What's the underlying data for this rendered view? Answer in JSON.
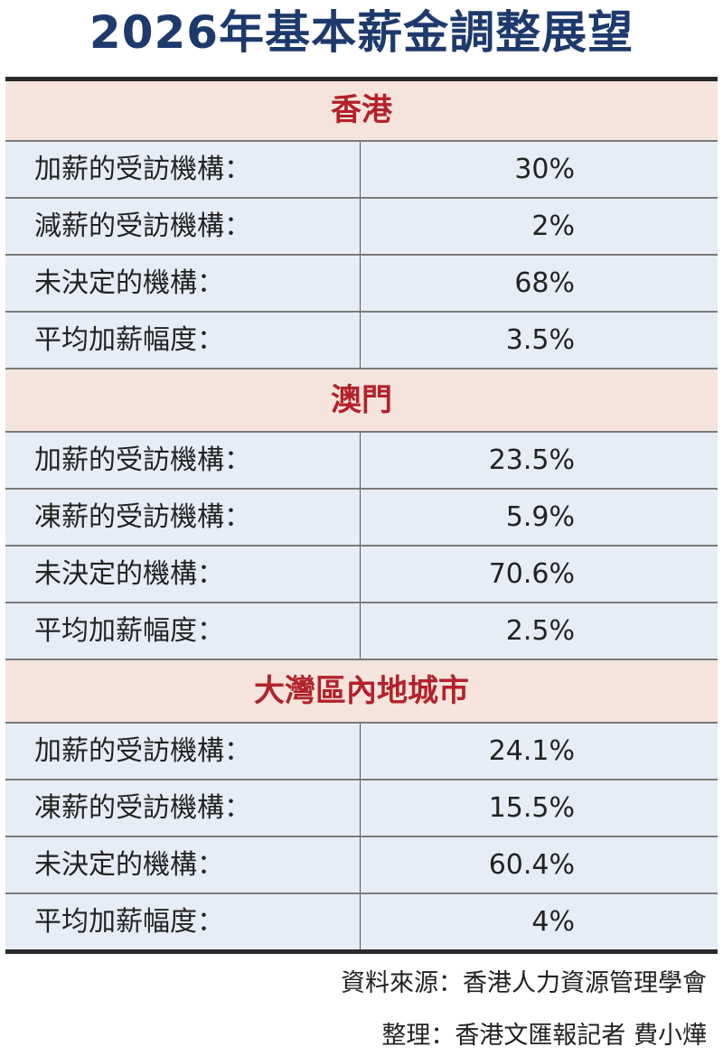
{
  "title": "2026年基本薪金調整展望",
  "sections": [
    {
      "heading": "香港",
      "rows": [
        {
          "label": "加薪的受訪機構：",
          "value": "30%"
        },
        {
          "label": "減薪的受訪機構：",
          "value": "2%"
        },
        {
          "label": "未決定的機構：",
          "value": "68%"
        },
        {
          "label": "平均加薪幅度：",
          "value": "3.5%"
        }
      ]
    },
    {
      "heading": "澳門",
      "rows": [
        {
          "label": "加薪的受訪機構：",
          "value": "23.5%"
        },
        {
          "label": "凍薪的受訪機構：",
          "value": "5.9%"
        },
        {
          "label": "未決定的機構：",
          "value": "70.6%"
        },
        {
          "label": "平均加薪幅度：",
          "value": "2.5%"
        }
      ]
    },
    {
      "heading": "大灣區內地城市",
      "rows": [
        {
          "label": "加薪的受訪機構：",
          "value": "24.1%"
        },
        {
          "label": "凍薪的受訪機構：",
          "value": "15.5%"
        },
        {
          "label": "未決定的機構：",
          "value": "60.4%"
        },
        {
          "label": "平均加薪幅度：",
          "value": "4%"
        }
      ]
    }
  ],
  "source": "資料來源：香港人力資源管理學會",
  "compiled_by": "整理：香港文匯報記者 費小燁",
  "colors": {
    "title": "#1e3a6d",
    "section_heading": "#b3212b",
    "section_bg": "#f5e4db",
    "row_bg": "#e7edf7"
  }
}
